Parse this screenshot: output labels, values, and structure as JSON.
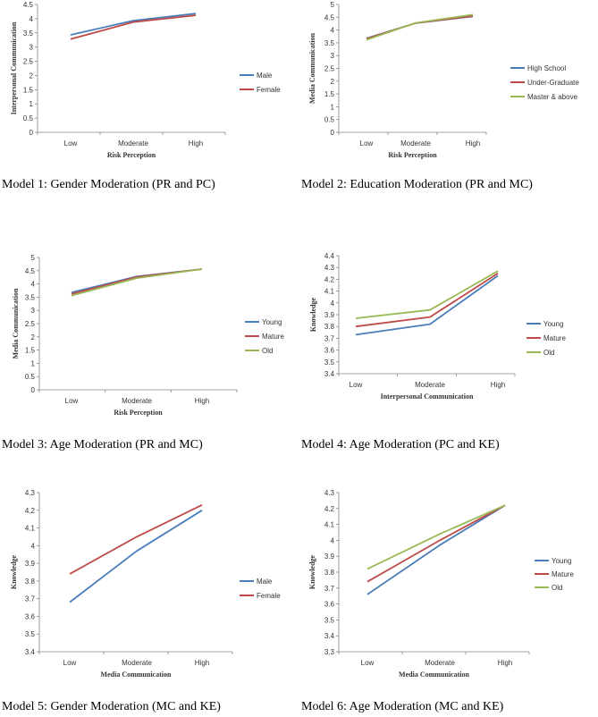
{
  "colors": {
    "blue": "#4a7ebb",
    "red": "#be4b48",
    "green": "#98b954",
    "axis": "#868686",
    "text": "#333333"
  },
  "captions": [
    "Model 1: Gender Moderation (PR and PC)",
    "Model 2: Education Moderation (PR and MC)",
    "Model 3: Age Moderation  (PR and MC)",
    "Model 4: Age Moderation (PC and KE)",
    "Model 5: Gender Moderation (MC and KE)",
    "Model 6: Age Moderation (MC and KE)"
  ],
  "chart_data": [
    {
      "type": "line",
      "title": "",
      "xlabel": "Risk Perception",
      "ylabel": "Interpersonal Communication",
      "categories": [
        "Low",
        "Moderate",
        "High"
      ],
      "ylim": [
        0,
        4.5
      ],
      "yticks": [
        "0",
        "0.5",
        "1",
        "1.5",
        "2",
        "2.5",
        "3",
        "3.5",
        "4",
        "4.5"
      ],
      "grid": false,
      "legend": "right",
      "series": [
        {
          "name": "Male",
          "color": "#4a7ebb",
          "values": [
            3.43,
            3.93,
            4.18
          ]
        },
        {
          "name": "Female",
          "color": "#be4b48",
          "values": [
            3.28,
            3.88,
            4.12
          ]
        }
      ]
    },
    {
      "type": "line",
      "title": "",
      "xlabel": "Risk Perception",
      "ylabel": "Media Communication",
      "categories": [
        "Low",
        "Moderate",
        "High"
      ],
      "ylim": [
        0,
        5
      ],
      "yticks": [
        "0",
        "0.5",
        "1",
        "1.5",
        "2",
        "2.5",
        "3",
        "3.5",
        "4",
        "4.5",
        "5"
      ],
      "grid": false,
      "legend": "right",
      "series": [
        {
          "name": "High School",
          "color": "#4a7ebb",
          "values": [
            3.68,
            4.27,
            4.53
          ]
        },
        {
          "name": "Under-Graduate",
          "color": "#be4b48",
          "values": [
            3.66,
            4.27,
            4.55
          ]
        },
        {
          "name": "Master & above",
          "color": "#98b954",
          "values": [
            3.62,
            4.28,
            4.6
          ]
        }
      ]
    },
    {
      "type": "line",
      "title": "",
      "xlabel": "Risk Perception",
      "ylabel": "Media Communication",
      "categories": [
        "Low",
        "Moderate",
        "High"
      ],
      "ylim": [
        0,
        5
      ],
      "yticks": [
        "0",
        "0.5",
        "1",
        "1.5",
        "2",
        "2.5",
        "3",
        "3.5",
        "4",
        "4.5",
        "5"
      ],
      "grid": false,
      "legend": "right",
      "series": [
        {
          "name": "Young",
          "color": "#4a7ebb",
          "values": [
            3.68,
            4.28,
            4.56
          ]
        },
        {
          "name": "Mature",
          "color": "#be4b48",
          "values": [
            3.62,
            4.26,
            4.56
          ]
        },
        {
          "name": "Old",
          "color": "#98b954",
          "values": [
            3.56,
            4.22,
            4.56
          ]
        }
      ]
    },
    {
      "type": "line",
      "title": "",
      "xlabel": "Interpersonal Communication",
      "ylabel": "Knowledge",
      "categories": [
        "Low",
        "Moderate",
        "High"
      ],
      "ylim": [
        3.4,
        4.4
      ],
      "yticks": [
        "3.4",
        "3.5",
        "3.6",
        "3.7",
        "3.8",
        "3.9",
        "4",
        "4.1",
        "4.2",
        "4.3",
        "4.4"
      ],
      "grid": false,
      "legend": "right",
      "series": [
        {
          "name": "Young",
          "color": "#4a7ebb",
          "values": [
            3.73,
            3.82,
            4.23
          ]
        },
        {
          "name": "Mature",
          "color": "#be4b48",
          "values": [
            3.8,
            3.88,
            4.25
          ]
        },
        {
          "name": "Old",
          "color": "#98b954",
          "values": [
            3.87,
            3.94,
            4.27
          ]
        }
      ]
    },
    {
      "type": "line",
      "title": "",
      "xlabel": "Media Communication",
      "ylabel": "Knowledge",
      "categories": [
        "Low",
        "Moderate",
        "High"
      ],
      "ylim": [
        3.4,
        4.3
      ],
      "yticks": [
        "3.4",
        "3.5",
        "3.6",
        "3.7",
        "3.8",
        "3.9",
        "4",
        "4.1",
        "4.2",
        "4.3"
      ],
      "grid": false,
      "legend": "right",
      "series": [
        {
          "name": "Male",
          "color": "#4a7ebb",
          "values": [
            3.68,
            3.97,
            4.2
          ]
        },
        {
          "name": "Female",
          "color": "#be4b48",
          "values": [
            3.84,
            4.05,
            4.23
          ]
        }
      ]
    },
    {
      "type": "line",
      "title": "",
      "xlabel": "Media Communication",
      "ylabel": "Knowledge",
      "categories": [
        "Low",
        "Moderate",
        "High"
      ],
      "ylim": [
        3.3,
        4.3
      ],
      "yticks": [
        "3.3",
        "3.4",
        "3.5",
        "3.6",
        "3.7",
        "3.8",
        "3.9",
        "4",
        "4.1",
        "4.2",
        "4.3"
      ],
      "grid": false,
      "legend": "right",
      "series": [
        {
          "name": "Young",
          "color": "#4a7ebb",
          "values": [
            3.66,
            3.97,
            4.22
          ]
        },
        {
          "name": "Mature",
          "color": "#be4b48",
          "values": [
            3.74,
            4.0,
            4.22
          ]
        },
        {
          "name": "Old",
          "color": "#98b954",
          "values": [
            3.82,
            4.04,
            4.22
          ]
        }
      ]
    }
  ]
}
